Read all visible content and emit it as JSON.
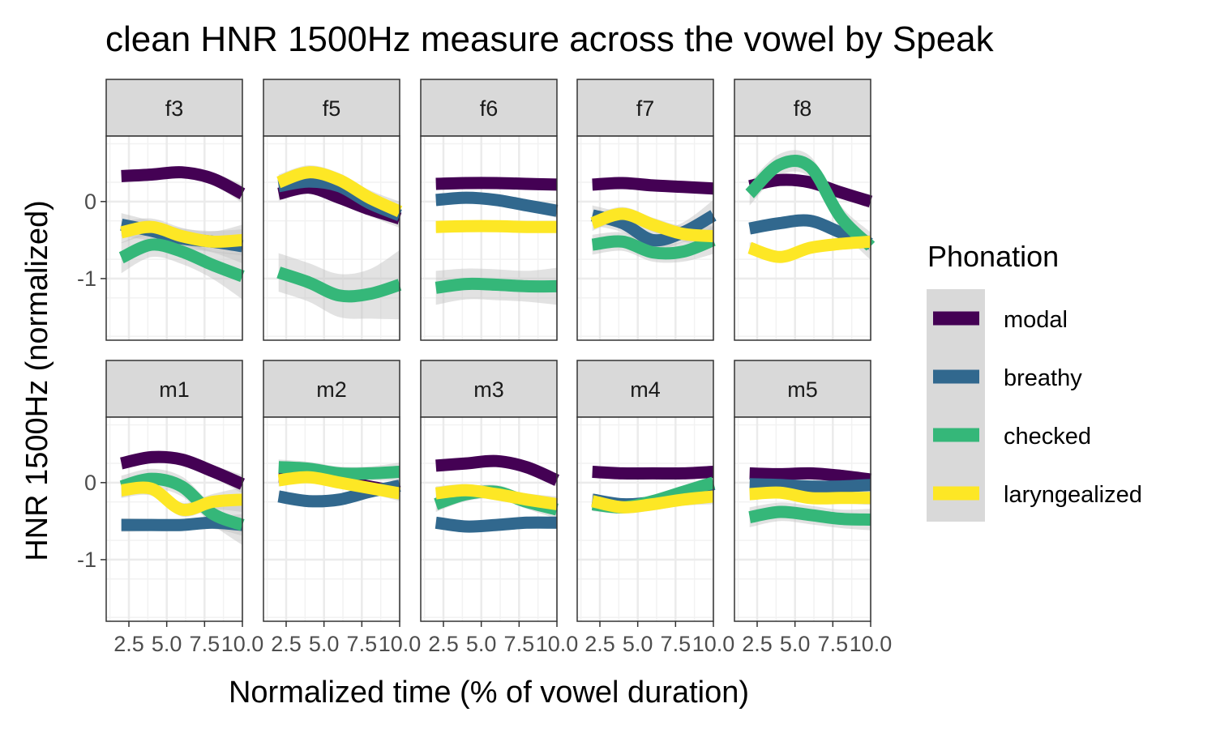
{
  "chart_data": {
    "type": "line",
    "title": "clean HNR 1500Hz measure across the vowel by Speak",
    "xlabel": "Normalized time (% of vowel duration)",
    "ylabel": "HNR 1500Hz (normalized)",
    "xlim": [
      1.0,
      10.0
    ],
    "ylim": [
      -1.8,
      0.85
    ],
    "x_ticks": [
      2.5,
      5.0,
      7.5,
      10.0
    ],
    "x_tick_labels": [
      "2.5",
      "5.0",
      "7.5",
      "10.0"
    ],
    "y_ticks": [
      0,
      -1
    ],
    "y_tick_labels": [
      "0",
      "-1"
    ],
    "grid": true,
    "legend": {
      "title": "Phonation",
      "position": "right",
      "entries": [
        "modal",
        "breathy",
        "checked",
        "laryngealized"
      ]
    },
    "series_colors": {
      "modal": "#440154",
      "breathy": "#31688e",
      "checked": "#35b779",
      "laryngealized": "#fde725"
    },
    "ribbon_color": "#bebebe",
    "x": [
      2,
      4,
      6,
      8,
      10
    ],
    "panels": [
      {
        "label": "f3",
        "series": [
          {
            "name": "modal",
            "values": [
              0.33,
              0.35,
              0.38,
              0.3,
              0.1
            ],
            "se": [
              0.08,
              0.07,
              0.07,
              0.08,
              0.12
            ]
          },
          {
            "name": "breathy",
            "values": [
              -0.3,
              -0.38,
              -0.48,
              -0.52,
              -0.58
            ],
            "se": [
              0.15,
              0.13,
              0.13,
              0.14,
              0.22
            ]
          },
          {
            "name": "checked",
            "values": [
              -0.73,
              -0.56,
              -0.65,
              -0.82,
              -0.97
            ],
            "se": [
              0.2,
              0.16,
              0.16,
              0.18,
              0.3
            ]
          },
          {
            "name": "laryngealized",
            "values": [
              -0.4,
              -0.33,
              -0.45,
              -0.52,
              -0.5
            ],
            "se": [
              0.14,
              0.11,
              0.11,
              0.13,
              0.2
            ]
          }
        ]
      },
      {
        "label": "f5",
        "series": [
          {
            "name": "modal",
            "values": [
              0.1,
              0.18,
              0.05,
              -0.1,
              -0.22
            ],
            "se": [
              0.09,
              0.08,
              0.08,
              0.09,
              0.12
            ]
          },
          {
            "name": "breathy",
            "values": [
              0.2,
              0.26,
              0.2,
              -0.02,
              -0.18
            ],
            "se": [
              0.1,
              0.09,
              0.09,
              0.1,
              0.14
            ]
          },
          {
            "name": "checked",
            "values": [
              -0.92,
              -1.05,
              -1.22,
              -1.2,
              -1.08
            ],
            "se": [
              0.25,
              0.25,
              0.28,
              0.32,
              0.45
            ]
          },
          {
            "name": "laryngealized",
            "values": [
              0.25,
              0.38,
              0.28,
              0.05,
              -0.13
            ],
            "se": [
              0.1,
              0.09,
              0.09,
              0.1,
              0.13
            ]
          }
        ]
      },
      {
        "label": "f6",
        "series": [
          {
            "name": "modal",
            "values": [
              0.23,
              0.24,
              0.24,
              0.23,
              0.22
            ],
            "se": [
              0.05,
              0.05,
              0.05,
              0.05,
              0.06
            ]
          },
          {
            "name": "breathy",
            "values": [
              0.02,
              0.05,
              0.02,
              -0.05,
              -0.12
            ],
            "se": [
              0.07,
              0.06,
              0.06,
              0.07,
              0.09
            ]
          },
          {
            "name": "checked",
            "values": [
              -1.12,
              -1.07,
              -1.08,
              -1.1,
              -1.1
            ],
            "se": [
              0.22,
              0.2,
              0.2,
              0.2,
              0.24
            ]
          },
          {
            "name": "laryngealized",
            "values": [
              -0.33,
              -0.32,
              -0.32,
              -0.33,
              -0.33
            ],
            "se": [
              0.06,
              0.05,
              0.05,
              0.05,
              0.06
            ]
          }
        ]
      },
      {
        "label": "f7",
        "series": [
          {
            "name": "modal",
            "values": [
              0.22,
              0.24,
              0.21,
              0.19,
              0.17
            ],
            "se": [
              0.06,
              0.05,
              0.05,
              0.05,
              0.07
            ]
          },
          {
            "name": "breathy",
            "values": [
              -0.18,
              -0.28,
              -0.5,
              -0.4,
              -0.18
            ],
            "se": [
              0.13,
              0.12,
              0.12,
              0.13,
              0.2
            ]
          },
          {
            "name": "checked",
            "values": [
              -0.56,
              -0.52,
              -0.66,
              -0.65,
              -0.5
            ],
            "se": [
              0.13,
              0.12,
              0.12,
              0.13,
              0.18
            ]
          },
          {
            "name": "laryngealized",
            "values": [
              -0.28,
              -0.16,
              -0.3,
              -0.42,
              -0.45
            ],
            "se": [
              0.1,
              0.09,
              0.09,
              0.1,
              0.14
            ]
          }
        ]
      },
      {
        "label": "f8",
        "series": [
          {
            "name": "modal",
            "values": [
              0.2,
              0.28,
              0.25,
              0.12,
              0.0
            ],
            "se": [
              0.07,
              0.07,
              0.07,
              0.07,
              0.09
            ]
          },
          {
            "name": "breathy",
            "values": [
              -0.35,
              -0.28,
              -0.25,
              -0.4,
              -0.55
            ],
            "se": [
              0.07,
              0.06,
              0.06,
              0.07,
              0.1
            ]
          },
          {
            "name": "checked",
            "values": [
              0.1,
              0.48,
              0.45,
              -0.2,
              -0.58
            ],
            "se": [
              0.15,
              0.14,
              0.14,
              0.15,
              0.18
            ]
          },
          {
            "name": "laryngealized",
            "values": [
              -0.6,
              -0.72,
              -0.6,
              -0.55,
              -0.52
            ],
            "se": [
              0.07,
              0.06,
              0.06,
              0.07,
              0.09
            ]
          }
        ]
      },
      {
        "label": "m1",
        "series": [
          {
            "name": "modal",
            "values": [
              0.25,
              0.33,
              0.3,
              0.15,
              -0.02
            ],
            "se": [
              0.08,
              0.08,
              0.08,
              0.08,
              0.12
            ]
          },
          {
            "name": "breathy",
            "values": [
              -0.55,
              -0.55,
              -0.55,
              -0.52,
              -0.55
            ],
            "se": [
              0.09,
              0.08,
              0.08,
              0.08,
              0.14
            ]
          },
          {
            "name": "checked",
            "values": [
              -0.05,
              0.05,
              -0.05,
              -0.4,
              -0.55
            ],
            "se": [
              0.14,
              0.13,
              0.13,
              0.14,
              0.26
            ]
          },
          {
            "name": "laryngealized",
            "values": [
              -0.1,
              -0.08,
              -0.35,
              -0.25,
              -0.22
            ],
            "se": [
              0.1,
              0.09,
              0.09,
              0.1,
              0.16
            ]
          }
        ]
      },
      {
        "label": "m2",
        "series": [
          {
            "name": "modal",
            "values": [
              0.08,
              0.08,
              0.03,
              -0.05,
              -0.12
            ],
            "se": [
              0.06,
              0.05,
              0.05,
              0.05,
              0.07
            ]
          },
          {
            "name": "breathy",
            "values": [
              -0.18,
              -0.24,
              -0.22,
              -0.12,
              -0.04
            ],
            "se": [
              0.07,
              0.06,
              0.06,
              0.06,
              0.08
            ]
          },
          {
            "name": "checked",
            "values": [
              0.2,
              0.18,
              0.12,
              0.12,
              0.14
            ],
            "se": [
              0.1,
              0.09,
              0.09,
              0.09,
              0.12
            ]
          },
          {
            "name": "laryngealized",
            "values": [
              0.03,
              0.07,
              0.0,
              -0.07,
              -0.14
            ],
            "se": [
              0.08,
              0.07,
              0.07,
              0.07,
              0.1
            ]
          }
        ]
      },
      {
        "label": "m3",
        "series": [
          {
            "name": "modal",
            "values": [
              0.22,
              0.25,
              0.28,
              0.2,
              0.03
            ],
            "se": [
              0.07,
              0.06,
              0.06,
              0.06,
              0.08
            ]
          },
          {
            "name": "breathy",
            "values": [
              -0.52,
              -0.57,
              -0.55,
              -0.52,
              -0.52
            ],
            "se": [
              0.07,
              0.06,
              0.06,
              0.06,
              0.08
            ]
          },
          {
            "name": "checked",
            "values": [
              -0.28,
              -0.15,
              -0.12,
              -0.25,
              -0.35
            ],
            "se": [
              0.1,
              0.09,
              0.09,
              0.09,
              0.12
            ]
          },
          {
            "name": "laryngealized",
            "values": [
              -0.14,
              -0.1,
              -0.15,
              -0.22,
              -0.28
            ],
            "se": [
              0.09,
              0.08,
              0.08,
              0.08,
              0.1
            ]
          }
        ]
      },
      {
        "label": "m4",
        "series": [
          {
            "name": "modal",
            "values": [
              0.14,
              0.12,
              0.12,
              0.12,
              0.14
            ],
            "se": [
              0.06,
              0.05,
              0.05,
              0.05,
              0.06
            ]
          },
          {
            "name": "breathy",
            "values": [
              -0.22,
              -0.28,
              -0.25,
              -0.15,
              -0.02
            ],
            "se": [
              0.08,
              0.07,
              0.07,
              0.07,
              0.09
            ]
          },
          {
            "name": "checked",
            "values": [
              -0.28,
              -0.32,
              -0.24,
              -0.12,
              0.0
            ],
            "se": [
              0.09,
              0.08,
              0.08,
              0.08,
              0.1
            ]
          },
          {
            "name": "laryngealized",
            "values": [
              -0.24,
              -0.32,
              -0.28,
              -0.22,
              -0.18
            ],
            "se": [
              0.09,
              0.08,
              0.08,
              0.08,
              0.1
            ]
          }
        ]
      },
      {
        "label": "m5",
        "series": [
          {
            "name": "modal",
            "values": [
              0.12,
              0.11,
              0.12,
              0.09,
              0.04
            ],
            "se": [
              0.06,
              0.05,
              0.05,
              0.05,
              0.07
            ]
          },
          {
            "name": "breathy",
            "values": [
              -0.02,
              -0.03,
              -0.05,
              -0.05,
              -0.03
            ],
            "se": [
              0.07,
              0.06,
              0.06,
              0.06,
              0.08
            ]
          },
          {
            "name": "checked",
            "values": [
              -0.45,
              -0.38,
              -0.42,
              -0.47,
              -0.48
            ],
            "se": [
              0.13,
              0.12,
              0.12,
              0.12,
              0.14
            ]
          },
          {
            "name": "laryngealized",
            "values": [
              -0.15,
              -0.13,
              -0.2,
              -0.2,
              -0.2
            ],
            "se": [
              0.08,
              0.07,
              0.07,
              0.07,
              0.09
            ]
          }
        ]
      }
    ]
  }
}
